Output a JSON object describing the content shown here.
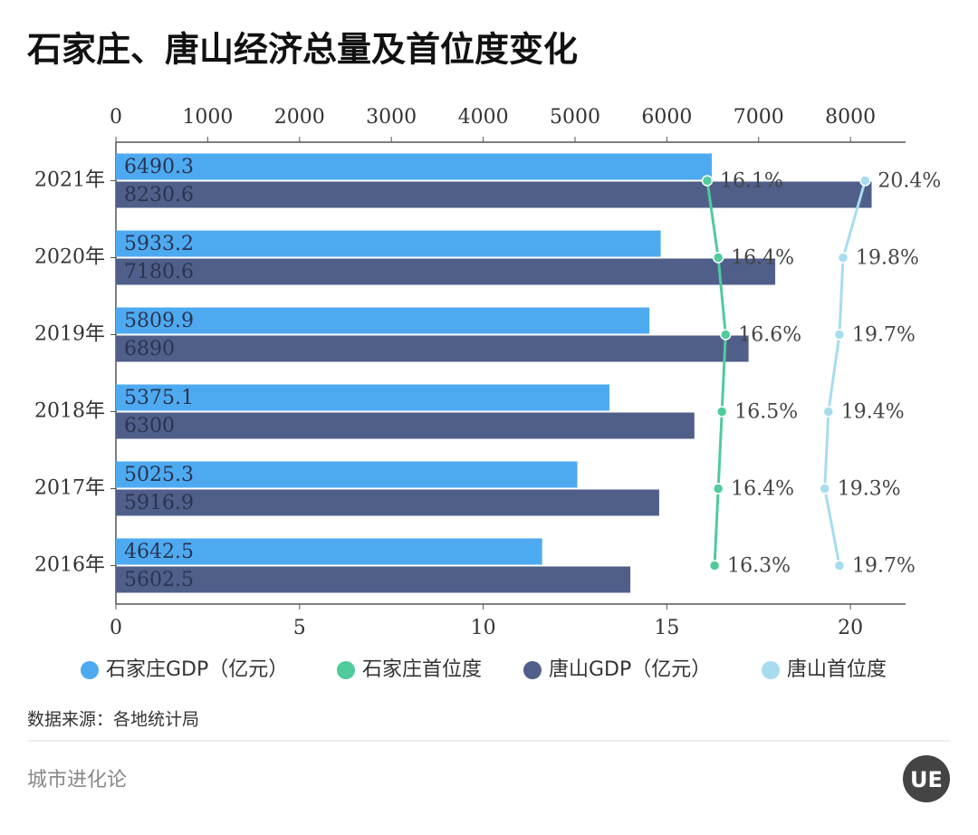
{
  "chart_data": {
    "type": "bar",
    "title": "石家庄、唐山经济总量及首位度变化",
    "categories": [
      "2021年",
      "2020年",
      "2019年",
      "2018年",
      "2017年",
      "2016年"
    ],
    "series": [
      {
        "name": "石家庄GDP（亿元）",
        "color": "#4eaaf0",
        "axis": "x2",
        "type": "bar",
        "values": [
          6490.3,
          5933.2,
          5809.9,
          5375.1,
          5025.3,
          4642.5
        ]
      },
      {
        "name": "石家庄首位度",
        "color": "#4fcb9c",
        "type": "line",
        "values": [
          16.1,
          16.4,
          16.6,
          16.5,
          16.4,
          16.3
        ],
        "value_labels": [
          "16.1%",
          "16.4%",
          "16.6%",
          "16.5%",
          "16.4%",
          "16.3%"
        ]
      },
      {
        "name": "唐山GDP（亿元）",
        "color": "#505f8a",
        "axis": "x2",
        "type": "bar",
        "values": [
          8230.6,
          7180.6,
          6890,
          6300,
          5916.9,
          5602.5
        ]
      },
      {
        "name": "唐山首位度",
        "color": "#a7dcef",
        "type": "line",
        "values": [
          20.4,
          19.8,
          19.7,
          19.4,
          19.3,
          19.7
        ],
        "value_labels": [
          "20.4%",
          "19.8%",
          "19.7%",
          "19.4%",
          "19.3%",
          "19.7%"
        ]
      }
    ],
    "xlim": [
      0,
      21.5
    ],
    "xticks": [
      0,
      5,
      10,
      15,
      20
    ],
    "x2lim": [
      0,
      8600
    ],
    "x2ticks": [
      0,
      1000,
      2000,
      3000,
      4000,
      5000,
      6000,
      7000,
      8000
    ],
    "legend": "bottom",
    "source": "数据来源：各地统计局",
    "footer": "城市进化论",
    "logo": "UE"
  }
}
